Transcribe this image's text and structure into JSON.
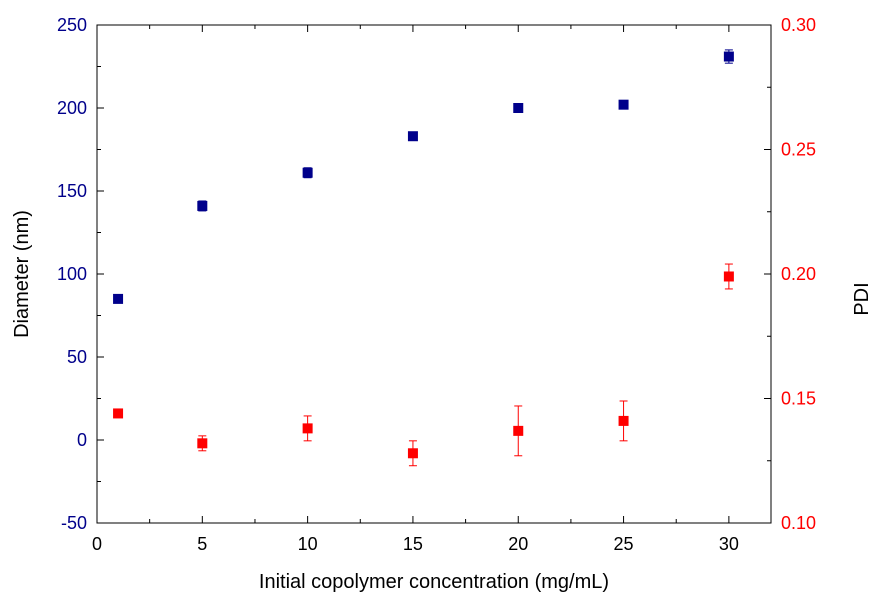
{
  "chart_data": {
    "type": "scatter",
    "title": "",
    "xlabel": "Initial copolymer concentration (mg/mL)",
    "ylabel_left": "Diameter (nm)",
    "ylabel_right": "PDI",
    "xlim": [
      0,
      32
    ],
    "ylim_left": [
      -50,
      250
    ],
    "ylim_right": [
      0.1,
      0.3
    ],
    "x_ticks": [
      0,
      5,
      10,
      15,
      20,
      25,
      30
    ],
    "y_left_ticks": [
      -50,
      0,
      50,
      100,
      150,
      200,
      250
    ],
    "y_right_ticks": [
      0.1,
      0.15,
      0.2,
      0.25,
      0.3
    ],
    "x_tick_labels": [
      "0",
      "5",
      "10",
      "15",
      "20",
      "25",
      "30"
    ],
    "y_left_tick_labels": [
      "-50",
      "0",
      "50",
      "100",
      "150",
      "200",
      "250"
    ],
    "y_right_tick_labels": [
      "0.10",
      "0.15",
      "0.20",
      "0.25",
      "0.30"
    ],
    "grid": false,
    "legend": "none",
    "series": [
      {
        "axis": "left",
        "color": "#00008b",
        "points": [
          {
            "x": 1,
            "y": 85,
            "err": 1
          },
          {
            "x": 5,
            "y": 141,
            "err": 3
          },
          {
            "x": 10,
            "y": 161,
            "err": 3
          },
          {
            "x": 15,
            "y": 183,
            "err": 1
          },
          {
            "x": 20,
            "y": 200,
            "err": 1
          },
          {
            "x": 25,
            "y": 202,
            "err": 1
          },
          {
            "x": 30,
            "y": 231,
            "err": 4
          }
        ]
      },
      {
        "axis": "right",
        "color": "#ff0000",
        "points": [
          {
            "x": 1,
            "y": 0.144,
            "err": 0.001
          },
          {
            "x": 5,
            "y": 0.132,
            "err": 0.003
          },
          {
            "x": 10,
            "y": 0.138,
            "err": 0.005
          },
          {
            "x": 15,
            "y": 0.128,
            "err": 0.005
          },
          {
            "x": 20,
            "y": 0.137,
            "err": 0.01
          },
          {
            "x": 25,
            "y": 0.141,
            "err": 0.008
          },
          {
            "x": 30,
            "y": 0.199,
            "err": 0.005
          }
        ]
      }
    ]
  }
}
